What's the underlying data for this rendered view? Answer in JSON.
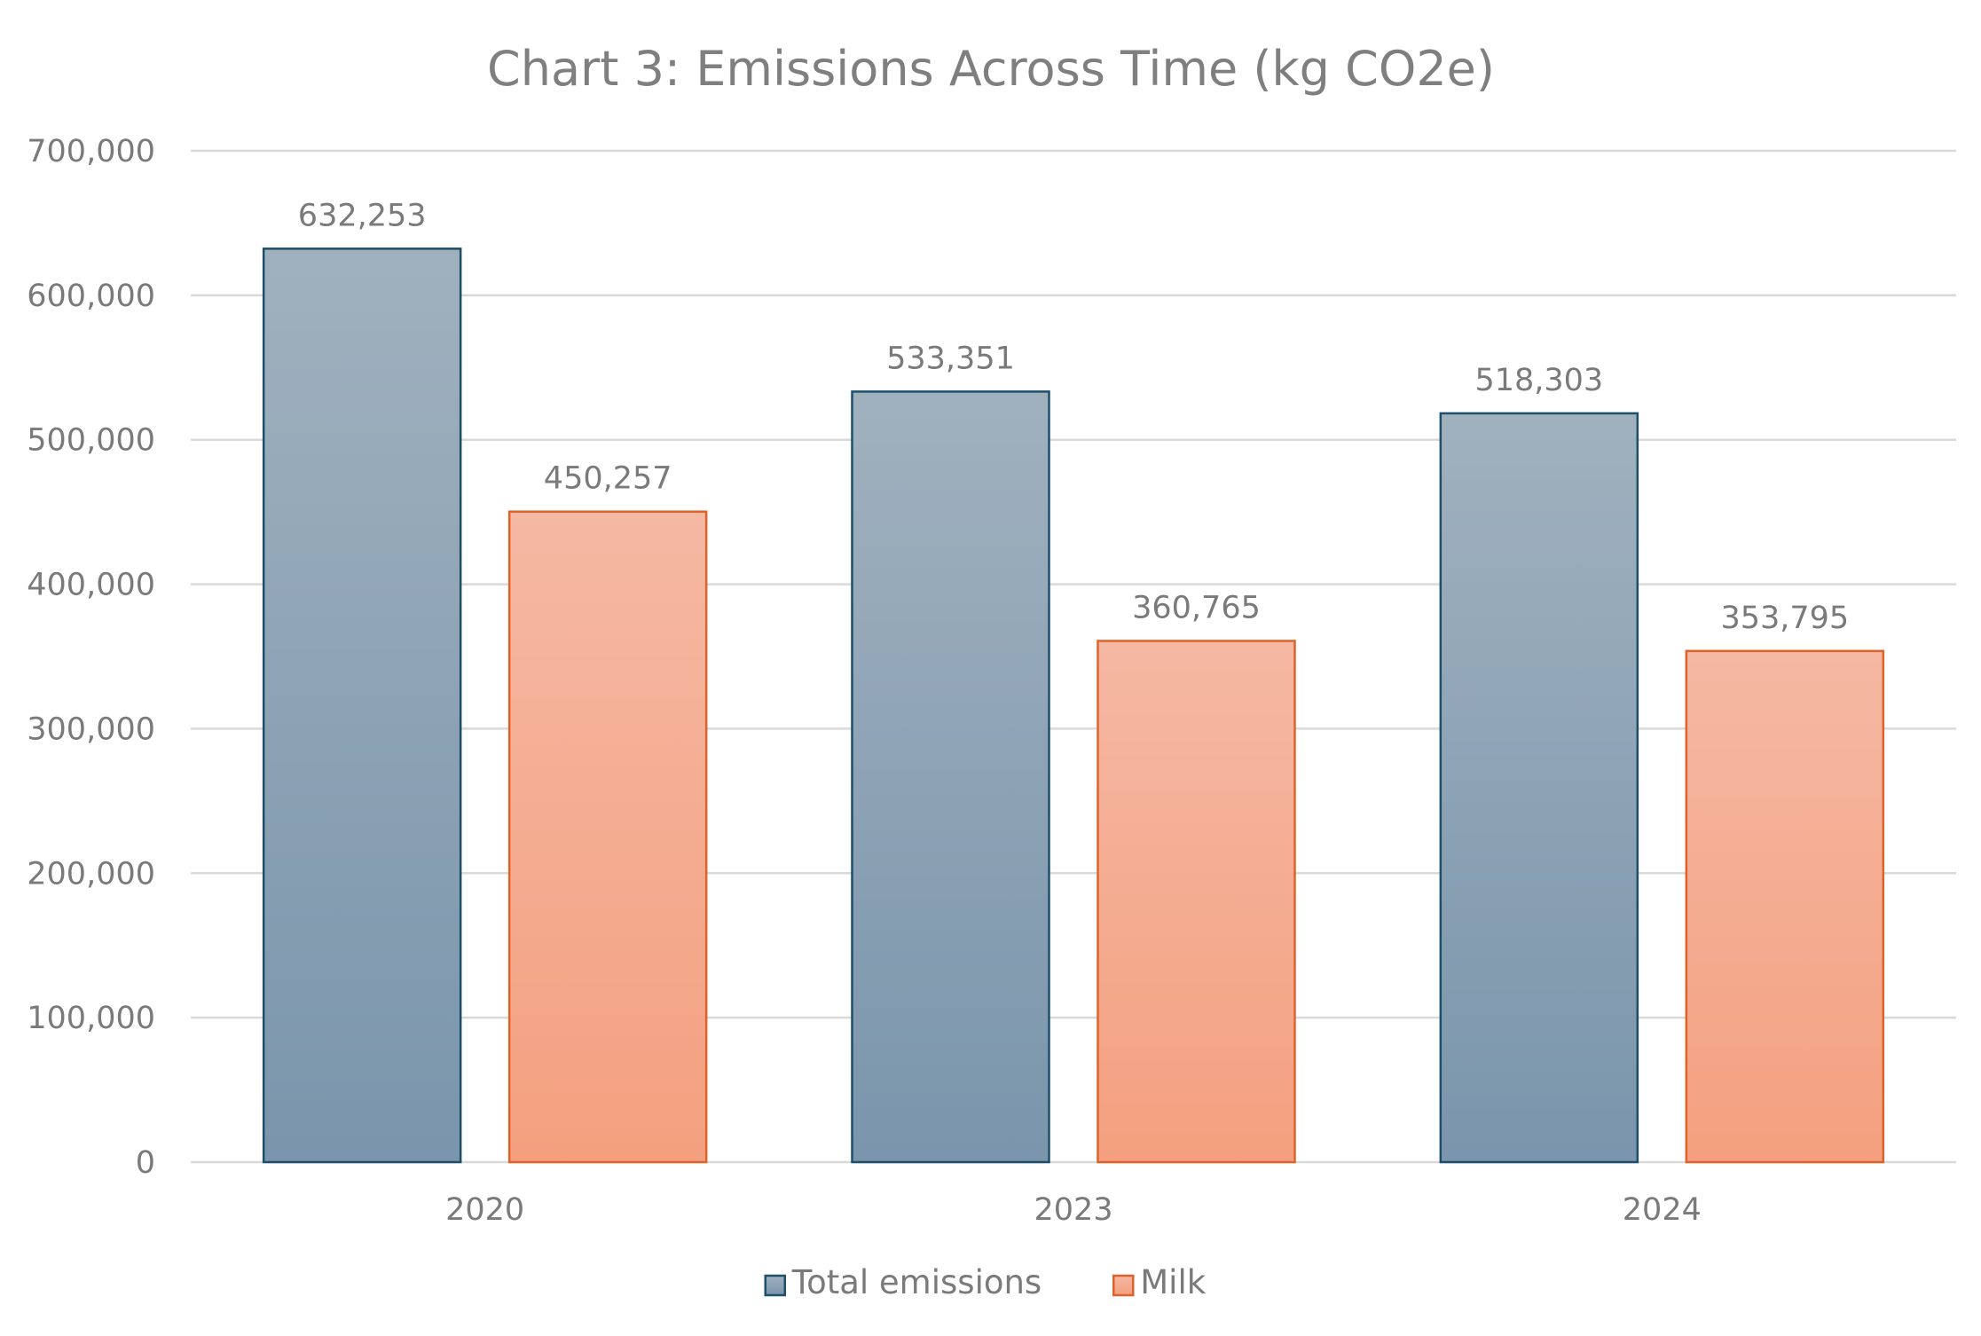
{
  "chart_data": {
    "type": "bar",
    "title": "Chart 3: Emissions Across Time (kg CO2e)",
    "categories": [
      "2020",
      "2023",
      "2024"
    ],
    "series": [
      {
        "name": "Total emissions",
        "values": [
          632253,
          533351,
          518303
        ],
        "labels": [
          "632,253",
          "533,351",
          "518,303"
        ],
        "color_top": "#a0b1be",
        "color_bottom": "#7a95ac",
        "border": "#1f4e6b"
      },
      {
        "name": "Milk",
        "values": [
          450257,
          360765,
          353795
        ],
        "labels": [
          "450,257",
          "360,765",
          "353,795"
        ],
        "color_top": "#f5b8a3",
        "color_bottom": "#f4a07f",
        "border": "#e0622b"
      }
    ],
    "ylim": [
      0,
      700000
    ],
    "yticks": [
      0,
      100000,
      200000,
      300000,
      400000,
      500000,
      600000,
      700000
    ],
    "ytick_labels": [
      "0",
      "100,000",
      "200,000",
      "300,000",
      "400,000",
      "500,000",
      "600,000",
      "700,000"
    ],
    "xlabel": "",
    "ylabel": "",
    "grid": true,
    "legend": "bottom-center"
  }
}
